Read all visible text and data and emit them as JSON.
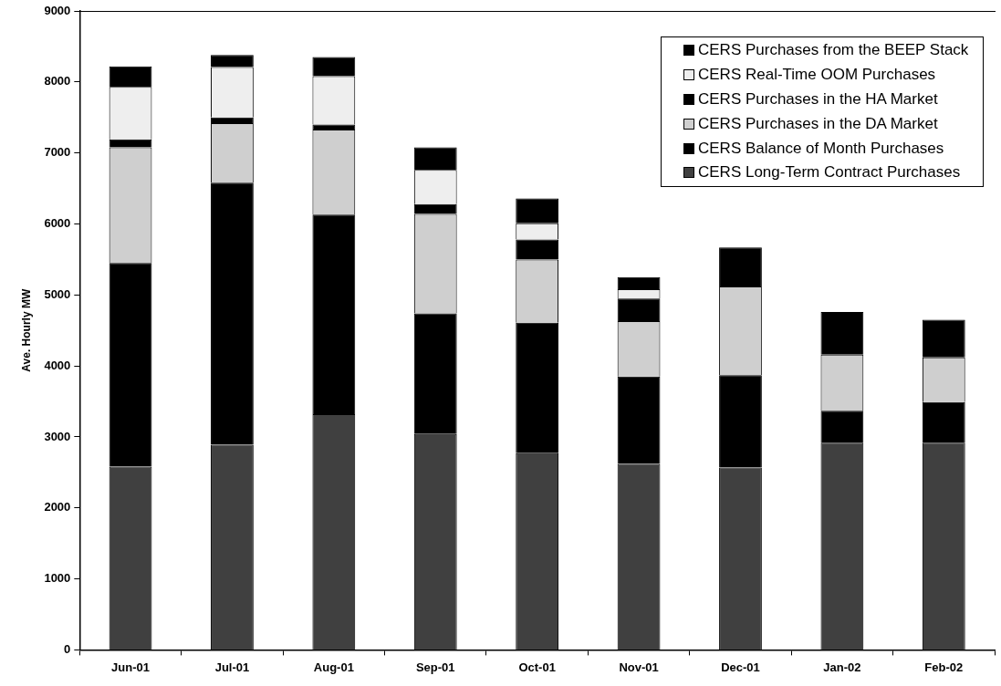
{
  "chart_data": {
    "type": "bar",
    "stacked": true,
    "ylabel": "Ave. Hourly MW",
    "categories": [
      "Jun-01",
      "Jul-01",
      "Aug-01",
      "Sep-01",
      "Oct-01",
      "Nov-01",
      "Dec-01",
      "Jan-02",
      "Feb-02"
    ],
    "series": [
      {
        "name": "CERS Long-Term Contract Purchases",
        "color": "#404040",
        "values": [
          2580,
          2890,
          3320,
          3040,
          2770,
          2620,
          2570,
          2920,
          2920
        ]
      },
      {
        "name": "CERS Balance of Month Purchases",
        "color": "#000000",
        "values": [
          2870,
          3690,
          2810,
          1700,
          1840,
          1230,
          1300,
          450,
          570
        ]
      },
      {
        "name": "CERS Purchases in the DA Market",
        "color": "#cfcfcf",
        "values": [
          1630,
          840,
          1200,
          1400,
          890,
          780,
          1250,
          790,
          630
        ]
      },
      {
        "name": "CERS Purchases in the HA Market",
        "color": "#000000",
        "values": [
          110,
          80,
          70,
          140,
          280,
          320,
          0,
          0,
          0
        ]
      },
      {
        "name": "CERS Real-Time OOM Purchases",
        "color": "#eeeeee",
        "values": [
          740,
          710,
          680,
          480,
          230,
          130,
          0,
          0,
          0
        ]
      },
      {
        "name": "CERS Purchases from the BEEP Stack",
        "color": "#000000",
        "values": [
          290,
          170,
          270,
          320,
          350,
          170,
          550,
          600,
          530
        ]
      }
    ],
    "ylim": [
      0,
      9000
    ],
    "yticks": [
      0,
      1000,
      2000,
      3000,
      4000,
      5000,
      6000,
      7000,
      8000,
      9000
    ],
    "grid": false,
    "legend": "top right"
  }
}
